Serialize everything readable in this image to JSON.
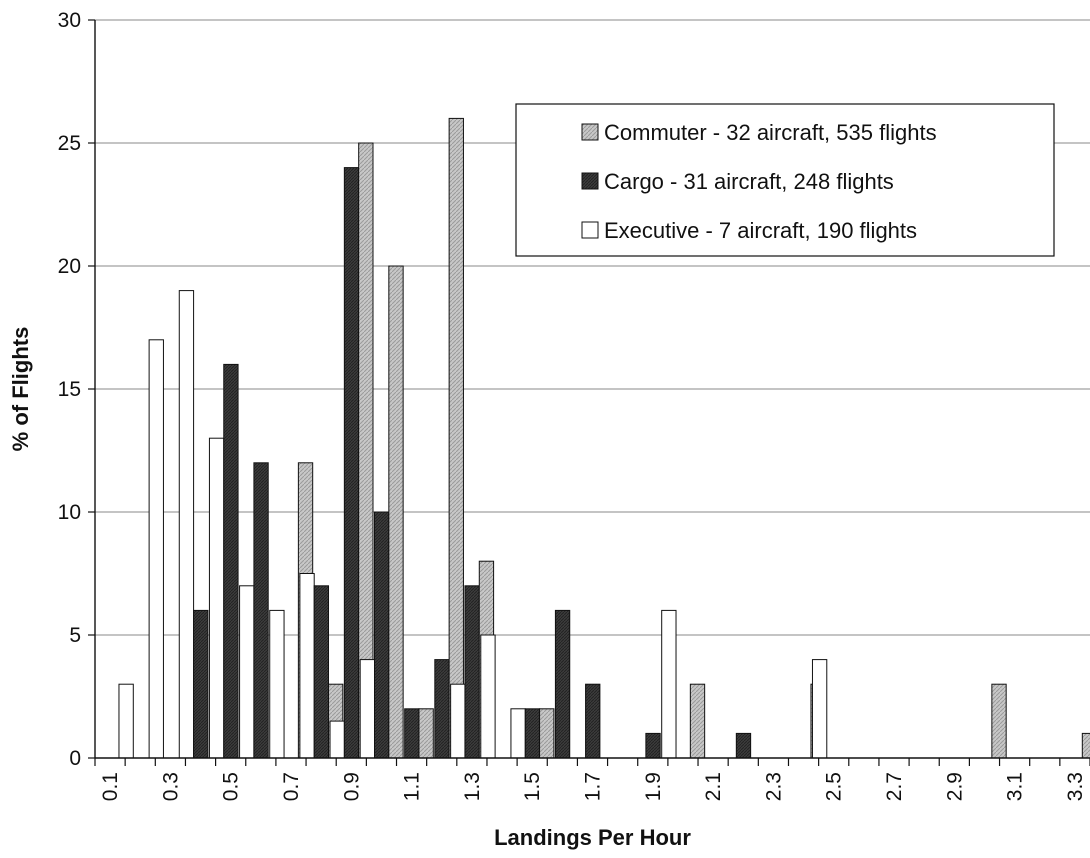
{
  "chart_data": {
    "type": "bar",
    "xlabel": "Landings Per Hour",
    "ylabel": "% of Flights",
    "ylim": [
      0,
      30
    ],
    "yticks": [
      "0",
      "5",
      "10",
      "15",
      "20",
      "25",
      "30"
    ],
    "categories": [
      "0.1",
      "0.2",
      "0.3",
      "0.4",
      "0.5",
      "0.6",
      "0.7",
      "0.8",
      "0.9",
      "1.0",
      "1.1",
      "1.2",
      "1.3",
      "1.4",
      "1.5",
      "1.6",
      "1.7",
      "1.8",
      "1.9",
      "2.0",
      "2.1",
      "2.2",
      "2.3",
      "2.4",
      "2.5",
      "2.6",
      "2.7",
      "2.8",
      "2.9",
      "3.0",
      "3.1",
      "3.2",
      "3.3"
    ],
    "x_tick_labels": [
      "0.1",
      "0.3",
      "0.5",
      "0.7",
      "0.9",
      "1.1",
      "1.3",
      "1.5",
      "1.7",
      "1.9",
      "2.1",
      "2.3",
      "2.5",
      "2.7",
      "2.9",
      "3.1",
      "3.3"
    ],
    "grid": "horizontal",
    "legend_position": "top-right",
    "series": [
      {
        "name": "Commuter - 32 aircraft, 535 flights",
        "color": "#c8c8c8",
        "values": [
          0,
          0,
          0,
          0,
          0,
          0,
          12,
          3,
          25,
          20,
          2,
          26,
          8,
          0,
          2,
          0,
          0,
          0,
          0,
          3,
          0,
          0,
          0,
          3,
          0,
          0,
          0,
          0,
          0,
          3,
          0,
          0,
          1
        ]
      },
      {
        "name": "Cargo - 31 aircraft, 248 flights",
        "color": "#3c3c3c",
        "values": [
          0,
          0,
          0,
          6,
          16,
          12,
          0,
          7,
          24,
          10,
          2,
          4,
          7,
          0,
          2,
          6,
          3,
          0,
          1,
          0,
          0,
          1,
          0,
          0,
          0,
          0,
          0,
          0,
          0,
          0,
          0,
          0,
          0
        ]
      },
      {
        "name": "Executive - 7 aircraft, 190 flights",
        "color": "#ffffff",
        "values": [
          0,
          3,
          17,
          19,
          13,
          7,
          6,
          7.5,
          1.5,
          4,
          0,
          0,
          3,
          5,
          2,
          0,
          0,
          0,
          0,
          6,
          0,
          0,
          0,
          0,
          4,
          0,
          0,
          0,
          0,
          0,
          0,
          0,
          0
        ]
      }
    ]
  }
}
